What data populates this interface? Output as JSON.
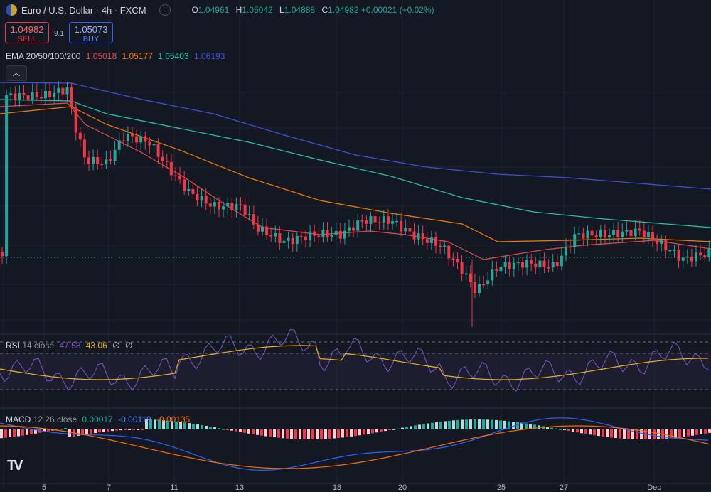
{
  "header": {
    "symbol": "Euro / U.S. Dollar · 4h · FXCM",
    "open_label": "O",
    "open": "1.04961",
    "high_label": "H",
    "high": "1.05042",
    "low_label": "L",
    "low": "1.04888",
    "close_label": "C",
    "close": "1.04982",
    "change": "+0.00021 (+0.02%)"
  },
  "trade": {
    "sell_price": "1.04982",
    "sell_label": "SELL",
    "spread": "9.1",
    "buy_price": "1.05073",
    "buy_label": "BUY"
  },
  "ema": {
    "label": "EMA 20/50/100/200",
    "v20": "1.05018",
    "v50": "1.05177",
    "v100": "1.05403",
    "v200": "1.06193",
    "colors": {
      "ema20": "#e5484d",
      "ema50": "#f57c00",
      "ema100": "#26c6a6",
      "ema200": "#3f51d9"
    }
  },
  "rsi": {
    "label": "RSI",
    "params": "14 close",
    "value": "47.58",
    "ma": "43.06",
    "na1": "∅",
    "na2": "∅"
  },
  "macd": {
    "label": "MACD",
    "params": "12 26 close",
    "hist": "0.00017",
    "macd": "-0.00119",
    "signal": "-0.00135"
  },
  "x_axis": {
    "labels": [
      "5",
      "7",
      "11",
      "13",
      "18",
      "20",
      "25",
      "27",
      "Dec"
    ]
  },
  "colors": {
    "up": "#26a69a",
    "down": "#f23645",
    "rsi": "#7e57c2",
    "rsi_ma": "#e6b422",
    "macd": "#2962ff",
    "signal": "#ff6d00"
  },
  "icons": {
    "collapse": "chevron-up-icon",
    "logo": "tradingview-logo"
  }
}
